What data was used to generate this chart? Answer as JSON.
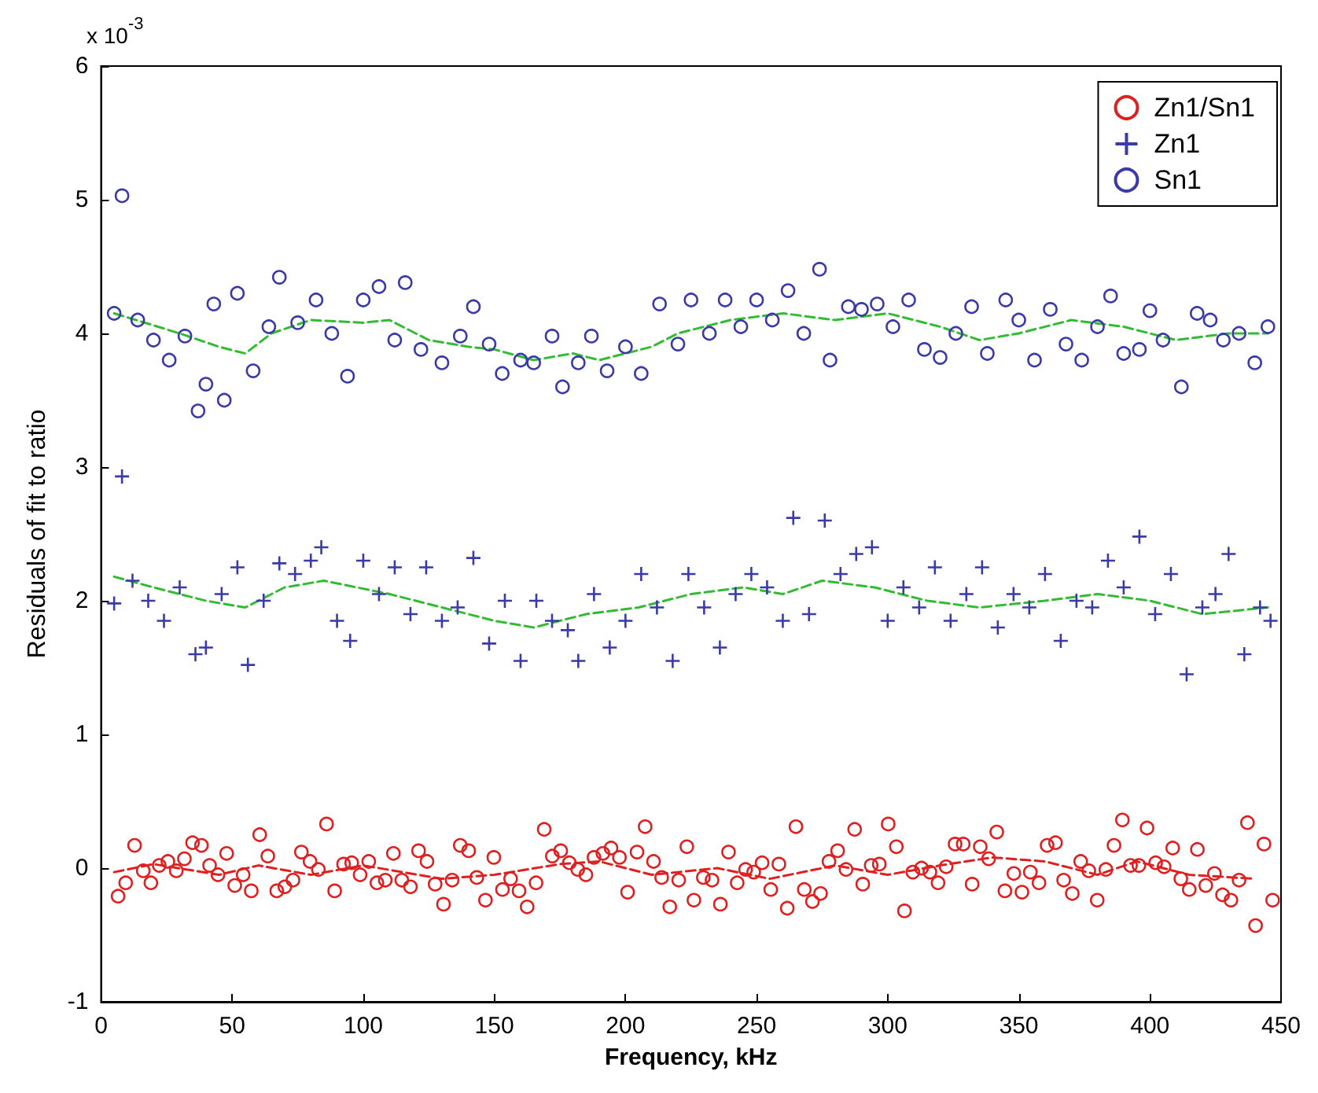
{
  "chart_data": {
    "type": "scatter",
    "xlabel": "Frequency, kHz",
    "ylabel": "Residuals of fit to ratio",
    "annotations": [
      "x 10$^{-3}$"
    ],
    "xlim": [
      0,
      450
    ],
    "xticks": [
      0,
      50,
      100,
      150,
      200,
      250,
      300,
      350,
      400,
      450
    ],
    "ylim": [
      -1,
      6
    ],
    "yticks": [
      -1,
      0,
      1,
      2,
      3,
      4,
      5,
      6
    ],
    "grid": false,
    "legend": "top right",
    "series": [
      {
        "name": "Zn1/Sn1",
        "marker": "circle",
        "color": "#e02020",
        "x": [
          6.5,
          9.4,
          12.8,
          16.1,
          19.0,
          22.2,
          25.5,
          28.7,
          31.8,
          34.9,
          38.3,
          41.4,
          44.6,
          47.9,
          51.0,
          54.2,
          57.3,
          60.5,
          63.6,
          67.0,
          70.1,
          73.2,
          76.4,
          79.7,
          82.9,
          86.0,
          89.1,
          92.5,
          95.6,
          98.8,
          102.1,
          105.2,
          108.4,
          111.5,
          114.7,
          118.0,
          121.1,
          124.3,
          127.4,
          130.6,
          133.9,
          137.0,
          140.2,
          143.3,
          146.6,
          149.8,
          153.1,
          156.2,
          159.4,
          162.5,
          165.9,
          169.0,
          172.1,
          175.3,
          178.6,
          181.8,
          184.9,
          188.0,
          191.4,
          194.5,
          197.7,
          200.8,
          204.4,
          207.5,
          210.7,
          213.8,
          216.9,
          220.3,
          223.4,
          226.1,
          229.7,
          233.0,
          236.2,
          239.3,
          242.6,
          245.8,
          248.9,
          252.1,
          255.4,
          258.5,
          261.7,
          265.0,
          268.2,
          271.3,
          274.4,
          277.6,
          280.9,
          284.1,
          287.4,
          290.5,
          293.7,
          296.8,
          300.2,
          303.3,
          306.4,
          309.6,
          312.9,
          316.1,
          319.2,
          322.3,
          325.7,
          328.8,
          332.2,
          335.3,
          338.5,
          341.6,
          344.7,
          348.1,
          351.2,
          354.4,
          357.7,
          360.8,
          364.0,
          367.1,
          370.4,
          373.6,
          376.7,
          379.9,
          383.2,
          386.3,
          389.5,
          392.6,
          395.8,
          398.9,
          402.2,
          405.4,
          408.7,
          411.8,
          415.0,
          418.1,
          421.3,
          424.6,
          427.7,
          430.9,
          434.0,
          437.2,
          440.3,
          443.5,
          446.8
        ],
        "values": [
          -0.21,
          -0.11,
          0.17,
          -0.02,
          -0.11,
          0.02,
          0.05,
          -0.02,
          0.07,
          0.19,
          0.17,
          0.02,
          -0.05,
          0.11,
          -0.13,
          -0.05,
          -0.17,
          0.25,
          0.09,
          -0.17,
          -0.14,
          -0.09,
          0.12,
          0.05,
          -0.01,
          0.33,
          -0.17,
          0.03,
          0.04,
          -0.05,
          0.05,
          -0.11,
          -0.09,
          0.11,
          -0.09,
          -0.14,
          0.13,
          0.05,
          -0.12,
          -0.27,
          -0.09,
          0.17,
          0.13,
          -0.07,
          -0.24,
          0.08,
          -0.16,
          -0.08,
          -0.17,
          -0.29,
          -0.11,
          0.29,
          0.09,
          0.13,
          0.04,
          -0.01,
          -0.05,
          0.08,
          0.11,
          0.15,
          0.08,
          -0.18,
          0.12,
          0.31,
          0.05,
          -0.07,
          -0.29,
          -0.09,
          0.16,
          -0.24,
          -0.07,
          -0.09,
          -0.27,
          0.12,
          -0.11,
          -0.01,
          -0.03,
          0.04,
          -0.16,
          0.03,
          -0.3,
          0.31,
          -0.16,
          -0.25,
          -0.19,
          0.05,
          0.13,
          -0.01,
          0.29,
          -0.12,
          0.02,
          0.03,
          0.33,
          0.16,
          -0.32,
          -0.03,
          0,
          -0.03,
          -0.11,
          0.01,
          0.18,
          0.18,
          -0.12,
          0.16,
          0.07,
          0.27,
          -0.17,
          -0.04,
          -0.18,
          -0.03,
          -0.11,
          0.17,
          0.19,
          -0.09,
          -0.19,
          0.05,
          -0.02,
          -0.24,
          -0.01,
          0.17,
          0.36,
          0.02,
          0.02,
          0.3,
          0.04,
          0.01,
          0.15,
          -0.08,
          -0.16,
          0.14,
          -0.13,
          -0.04,
          -0.2,
          -0.24,
          -0.09,
          0.34,
          -0.43,
          0.18,
          -0.24
        ]
      },
      {
        "name": "Zn1",
        "marker": "cross",
        "color": "#3a3aa8",
        "x": [
          5,
          8,
          12,
          18,
          24,
          30,
          36,
          40,
          46,
          52,
          56,
          62,
          68,
          74,
          80,
          84,
          90,
          95,
          100,
          106,
          112,
          118,
          124,
          130,
          136,
          142,
          148,
          154,
          160,
          166,
          172,
          178,
          182,
          188,
          194,
          200,
          206,
          212,
          218,
          224,
          230,
          236,
          242,
          248,
          254,
          260,
          264,
          270,
          276,
          282,
          288,
          294,
          300,
          306,
          312,
          318,
          324,
          330,
          336,
          342,
          348,
          354,
          360,
          366,
          372,
          378,
          384,
          390,
          396,
          402,
          408,
          414,
          420,
          425,
          430,
          436,
          442,
          446
        ],
        "values": [
          1.98,
          2.93,
          2.15,
          2.0,
          1.85,
          2.1,
          1.6,
          1.65,
          2.05,
          2.25,
          1.52,
          2.0,
          2.28,
          2.2,
          2.3,
          2.4,
          1.85,
          1.7,
          2.3,
          2.05,
          2.25,
          1.9,
          2.25,
          1.85,
          1.95,
          2.32,
          1.68,
          2.0,
          1.55,
          2.0,
          1.85,
          1.78,
          1.55,
          2.05,
          1.65,
          1.85,
          2.2,
          1.95,
          1.55,
          2.2,
          1.95,
          1.65,
          2.05,
          2.2,
          2.1,
          1.85,
          2.62,
          1.9,
          2.6,
          2.2,
          2.35,
          2.4,
          1.85,
          2.1,
          1.95,
          2.25,
          1.85,
          2.05,
          2.25,
          1.8,
          2.05,
          1.95,
          2.2,
          1.7,
          2.0,
          1.95,
          2.3,
          2.1,
          2.48,
          1.9,
          2.2,
          1.45,
          1.95,
          2.05,
          2.35,
          1.6,
          1.95,
          1.85
        ]
      },
      {
        "name": "Sn1",
        "marker": "circle",
        "color": "#3a3aa8",
        "x": [
          5,
          8,
          14,
          20,
          26,
          32,
          37,
          40,
          43,
          47,
          52,
          58,
          64,
          68,
          75,
          82,
          88,
          94,
          100,
          106,
          112,
          116,
          122,
          130,
          137,
          142,
          148,
          153,
          160,
          165,
          172,
          176,
          182,
          187,
          193,
          200,
          206,
          213,
          220,
          225,
          232,
          238,
          244,
          250,
          256,
          262,
          268,
          274,
          278,
          285,
          290,
          296,
          302,
          308,
          314,
          320,
          326,
          332,
          338,
          345,
          350,
          356,
          362,
          368,
          374,
          380,
          385,
          390,
          396,
          400,
          405,
          412,
          418,
          423,
          428,
          434,
          440,
          445
        ],
        "values": [
          4.15,
          5.03,
          4.1,
          3.95,
          3.8,
          3.98,
          3.42,
          3.62,
          4.22,
          3.5,
          4.3,
          3.72,
          4.05,
          4.42,
          4.08,
          4.25,
          4.0,
          3.68,
          4.25,
          4.35,
          3.95,
          4.38,
          3.88,
          3.78,
          3.98,
          4.2,
          3.92,
          3.7,
          3.8,
          3.78,
          3.98,
          3.6,
          3.78,
          3.98,
          3.72,
          3.9,
          3.7,
          4.22,
          3.92,
          4.25,
          4.0,
          4.25,
          4.05,
          4.25,
          4.1,
          4.32,
          4.0,
          4.48,
          3.8,
          4.2,
          4.18,
          4.22,
          4.05,
          4.25,
          3.88,
          3.82,
          4.0,
          4.2,
          3.85,
          4.25,
          4.1,
          3.8,
          4.18,
          3.92,
          3.8,
          4.05,
          4.28,
          3.85,
          3.88,
          4.17,
          3.95,
          3.6,
          4.15,
          4.1,
          3.95,
          4.0,
          3.78,
          4.05
        ]
      },
      {
        "type": "line",
        "line_style": "dashed",
        "color": "#33bb33",
        "x": [
          5,
          30,
          45,
          55,
          65,
          80,
          100,
          110,
          115,
          125,
          140,
          150,
          165,
          180,
          190,
          210,
          220,
          240,
          260,
          280,
          300,
          320,
          335,
          350,
          370,
          390,
          410,
          430,
          445
        ],
        "values": [
          4.15,
          4.0,
          3.9,
          3.85,
          4.0,
          4.1,
          4.08,
          4.1,
          4.05,
          3.95,
          3.9,
          3.88,
          3.8,
          3.85,
          3.8,
          3.9,
          4.0,
          4.1,
          4.15,
          4.1,
          4.15,
          4.05,
          3.95,
          4.0,
          4.1,
          4.05,
          3.95,
          4.0,
          4.0
        ]
      },
      {
        "type": "line",
        "line_style": "dashed",
        "color": "#33bb33",
        "x": [
          5,
          20,
          40,
          55,
          70,
          85,
          110,
          130,
          150,
          165,
          185,
          205,
          225,
          245,
          260,
          275,
          295,
          315,
          335,
          360,
          380,
          400,
          420,
          445
        ],
        "values": [
          2.18,
          2.1,
          2.0,
          1.95,
          2.1,
          2.15,
          2.05,
          1.95,
          1.85,
          1.8,
          1.9,
          1.95,
          2.05,
          2.1,
          2.05,
          2.15,
          2.1,
          2.0,
          1.95,
          2.0,
          2.05,
          2.0,
          1.9,
          1.95
        ]
      },
      {
        "type": "line",
        "line_style": "dashed",
        "color": "#e02020",
        "x": [
          5,
          20,
          45,
          60,
          80,
          100,
          130,
          150,
          175,
          190,
          210,
          235,
          255,
          280,
          300,
          320,
          340,
          360,
          380,
          395,
          415,
          440
        ],
        "values": [
          -0.03,
          0.03,
          -0.05,
          0.02,
          -0.05,
          0.02,
          -0.08,
          -0.05,
          0.03,
          0.05,
          -0.05,
          0,
          -0.08,
          0.02,
          -0.05,
          0.02,
          0.08,
          0.05,
          -0.05,
          0.05,
          -0.05,
          -0.08
        ]
      }
    ]
  }
}
